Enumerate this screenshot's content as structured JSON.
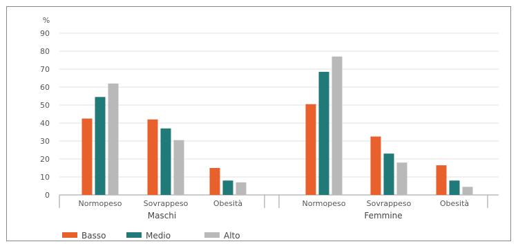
{
  "chart_data": {
    "type": "bar",
    "ylabel": "%",
    "ylim": [
      0,
      90
    ],
    "yticks": [
      0,
      10,
      20,
      30,
      40,
      50,
      60,
      70,
      80,
      90
    ],
    "grid": true,
    "legend_position": "bottom-left",
    "groups": [
      {
        "label": "Maschi",
        "categories": [
          "Normopeso",
          "Sovrappeso",
          "Obesità"
        ]
      },
      {
        "label": "Femmine",
        "categories": [
          "Normopeso",
          "Sovrappeso",
          "Obesità"
        ]
      }
    ],
    "categories": [
      "Normopeso",
      "Sovrappeso",
      "Obesità",
      "Normopeso",
      "Sovrappeso",
      "Obesità"
    ],
    "series": [
      {
        "name": "Basso",
        "color": "#e8602c",
        "values": [
          42.5,
          42,
          15,
          50.5,
          32.5,
          16.5
        ]
      },
      {
        "name": "Medio",
        "color": "#1f7a78",
        "values": [
          54.5,
          37,
          8,
          68.5,
          23,
          8
        ]
      },
      {
        "name": "Alto",
        "color": "#b9b9b9",
        "values": [
          62,
          30.5,
          7,
          77,
          18,
          4.5
        ]
      }
    ]
  }
}
